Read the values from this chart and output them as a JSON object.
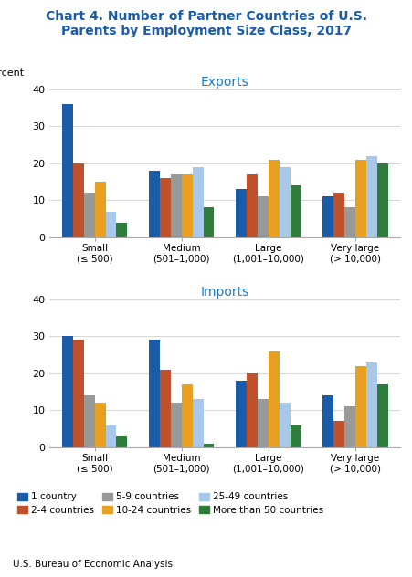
{
  "title": "Chart 4. Number of Partner Countries of U.S.\nParents by Employment Size Class, 2017",
  "title_color": "#1a5ca8",
  "subtitle_exports": "Exports",
  "subtitle_imports": "Imports",
  "subtitle_color": "#1a7ac8",
  "ylabel": "Percent",
  "categories": [
    "Small\n(≤ 500)",
    "Medium\n(501–1,000)",
    "Large\n(1,001–10,000)",
    "Very large\n(> 10,000)"
  ],
  "exports": {
    "1 country": [
      36,
      18,
      13,
      11
    ],
    "2-4 countries": [
      20,
      16,
      17,
      12
    ],
    "5-9 countries": [
      12,
      17,
      11,
      8
    ],
    "10-24 countries": [
      15,
      17,
      21,
      21
    ],
    "25-49 countries": [
      7,
      19,
      19,
      22
    ],
    "More than 50 countries": [
      4,
      8,
      14,
      20
    ]
  },
  "imports": {
    "1 country": [
      30,
      29,
      18,
      14
    ],
    "2-4 countries": [
      29,
      21,
      20,
      7
    ],
    "5-9 countries": [
      14,
      12,
      13,
      11
    ],
    "10-24 countries": [
      12,
      17,
      26,
      22
    ],
    "25-49 countries": [
      6,
      13,
      12,
      23
    ],
    "More than 50 countries": [
      3,
      1,
      6,
      17
    ]
  },
  "series_colors": {
    "1 country": "#1a5ca8",
    "2-4 countries": "#c0522b",
    "5-9 countries": "#999999",
    "10-24 countries": "#e8a020",
    "25-49 countries": "#a8c8e8",
    "More than 50 countries": "#2e7d3c"
  },
  "series_order": [
    "1 country",
    "2-4 countries",
    "5-9 countries",
    "10-24 countries",
    "25-49 countries",
    "More than 50 countries"
  ],
  "ylim": [
    0,
    40
  ],
  "yticks": [
    0,
    10,
    20,
    30,
    40
  ],
  "footer": "U.S. Bureau of Economic Analysis"
}
